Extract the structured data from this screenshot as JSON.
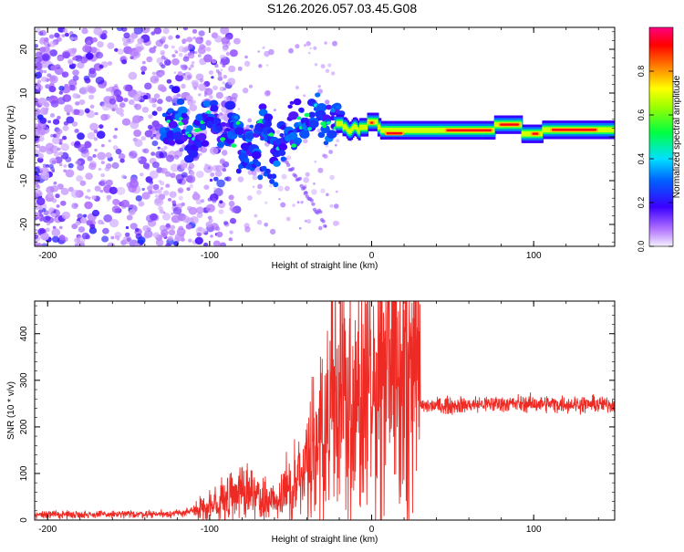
{
  "figure_title": "S126.2026.057.03.45.G08",
  "chart_data": [
    {
      "type": "heatmap",
      "title": "S126.2026.057.03.45.G08",
      "xlabel": "Height of straight line (km)",
      "ylabel": "Frequency (Hz)",
      "xlim": [
        -208,
        150
      ],
      "ylim": [
        -25,
        25
      ],
      "xticks": [
        -200,
        -100,
        0,
        100
      ],
      "xtick_labels": [
        "-200",
        "-100",
        "0",
        "100"
      ],
      "yticks": [
        -20,
        -10,
        0,
        10,
        20
      ],
      "ytick_labels": [
        "-20",
        "-10",
        "0",
        "10",
        "20"
      ],
      "colorbar": {
        "label": "Normalized spectral amplitude",
        "range": [
          0,
          1
        ],
        "ticks": [
          0.0,
          0.2,
          0.4,
          0.6,
          0.8
        ],
        "tick_labels": [
          "0.0",
          "0.2",
          "0.4",
          "0.6",
          "0.8"
        ],
        "colormap": "rainbow (magenta→blue→cyan→green→yellow→red)"
      },
      "ridge_segments": [
        {
          "x_start": -125,
          "x_end": -90,
          "freq": 3,
          "amplitude": 0.35
        },
        {
          "x_start": -78,
          "x_end": -50,
          "freq": 1,
          "amplitude": 0.4
        },
        {
          "x_start": -40,
          "x_end": -20,
          "freq": 4,
          "amplitude": 0.45
        },
        {
          "x_start": -20,
          "x_end": 0,
          "freq": 2,
          "amplitude": 0.6
        },
        {
          "x_start": 0,
          "x_end": 150,
          "freq": 1.5,
          "amplitude": 0.95
        }
      ]
    },
    {
      "type": "line",
      "xlabel": "Height of straight line (km)",
      "ylabel": "SNR (10 * v/v)",
      "xlim": [
        -208,
        150
      ],
      "ylim": [
        0,
        470
      ],
      "xticks": [
        -200,
        -100,
        0,
        100
      ],
      "xtick_labels": [
        "-200",
        "-100",
        "0",
        "100"
      ],
      "yticks": [
        0,
        100,
        200,
        300,
        400
      ],
      "ytick_labels": [
        "0",
        "100",
        "200",
        "300",
        "400"
      ],
      "series": [
        {
          "name": "SNR",
          "color": "#ee2a24",
          "envelope_x": [
            -208,
            -160,
            -120,
            -100,
            -90,
            -75,
            -60,
            -50,
            -40,
            -30,
            -20,
            -10,
            0,
            10,
            20,
            28,
            30,
            40,
            80,
            150
          ],
          "envelope_y": [
            12,
            12,
            14,
            25,
            45,
            60,
            35,
            60,
            110,
            180,
            250,
            220,
            270,
            310,
            330,
            350,
            245,
            245,
            250,
            248
          ],
          "peaks": [
            {
              "x": -18,
              "y": 420
            },
            {
              "x": 10,
              "y": 470
            },
            {
              "x": 12,
              "y": 410
            },
            {
              "x": 28,
              "y": 375
            }
          ]
        }
      ]
    }
  ]
}
